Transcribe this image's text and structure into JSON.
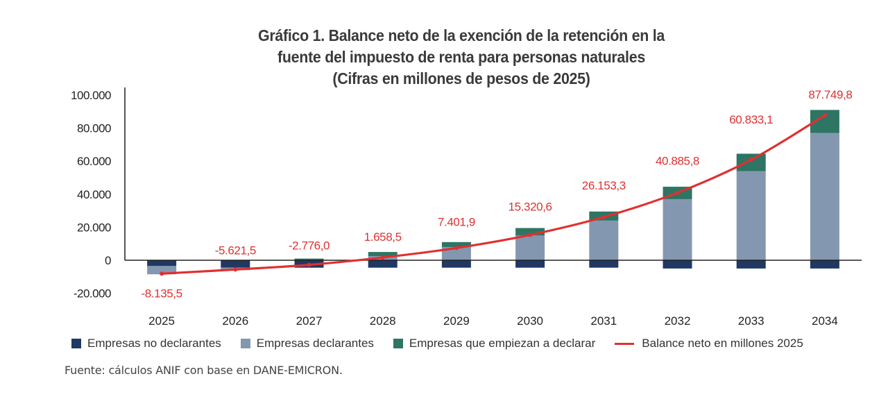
{
  "chart_data": {
    "type": "bar",
    "subtype": "stacked-bar-with-line",
    "title": [
      "Gráfico 1. Balance neto de la exención de la retención en la",
      "fuente del impuesto de renta para personas naturales",
      "(Cifras en millones de pesos de 2025)"
    ],
    "xlabel": "",
    "ylabel": "",
    "ylim": [
      -20000,
      100000
    ],
    "yticks": [
      100000,
      80000,
      60000,
      40000,
      20000,
      0,
      -20000
    ],
    "ytick_labels": [
      "100.000",
      "80.000",
      "60.000",
      "40.000",
      "20.000",
      "0",
      "-20.000"
    ],
    "categories": [
      "2025",
      "2026",
      "2027",
      "2028",
      "2029",
      "2030",
      "2031",
      "2032",
      "2033",
      "2034"
    ],
    "series": [
      {
        "name": "Empresas no declarantes",
        "type": "bar",
        "color": "#1f3864",
        "values": [
          -3500,
          -4500,
          -4500,
          -4500,
          -4500,
          -4500,
          -4500,
          -5000,
          -5000,
          -5000
        ]
      },
      {
        "name": "Empresas declarantes",
        "type": "bar",
        "color": "#8497b0",
        "values": [
          -5000,
          -1500,
          0,
          2500,
          8000,
          15000,
          24000,
          37000,
          54000,
          77000
        ]
      },
      {
        "name": "Empresas que empiezan a declarar",
        "type": "bar",
        "color": "#2e7563",
        "values": [
          0,
          200,
          1000,
          2500,
          3000,
          4500,
          5500,
          7500,
          10500,
          14000
        ]
      },
      {
        "name": "Balance neto en millones 2025",
        "type": "line",
        "color": "#e03030",
        "values": [
          -8135.5,
          -5621.5,
          -2776.0,
          1658.5,
          7401.9,
          15320.6,
          26153.3,
          40885.8,
          60833.1,
          87749.8
        ]
      }
    ],
    "data_labels": [
      "-8.135,5",
      "-5.621,5",
      "-2.776,0",
      "1.658,5",
      "7.401,9",
      "15.320,6",
      "26.153,3",
      "40.885,8",
      "60.833,1",
      "87.749,8"
    ],
    "legend_position": "bottom",
    "grid": false
  },
  "legend": [
    {
      "label": "Empresas no declarantes",
      "kind": "swatch",
      "color": "#1f3864"
    },
    {
      "label": "Empresas declarantes",
      "kind": "swatch",
      "color": "#8497b0"
    },
    {
      "label": "Empresas que empiezan a declarar",
      "kind": "swatch",
      "color": "#2e7563"
    },
    {
      "label": "Balance neto en millones 2025",
      "kind": "line",
      "color": "#e03030"
    }
  ],
  "source": "Fuente: cálculos ANIF con base en DANE-EMICRON."
}
